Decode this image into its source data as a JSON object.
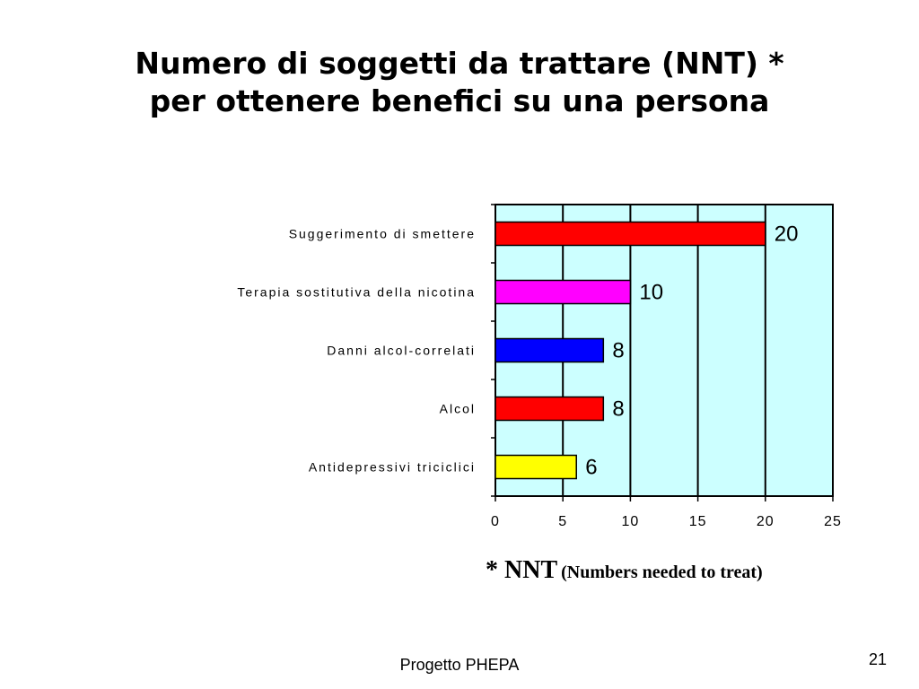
{
  "slide": {
    "title_line1": "Numero di soggetti da trattare (NNT) *",
    "title_line2": "per ottenere benefici su una persona",
    "footnote_main": "* NNT",
    "footnote_sub": "(Numbers needed to treat)",
    "footer": "Progetto PHEPA",
    "page_number": "21"
  },
  "chart_data": {
    "type": "bar",
    "orientation": "horizontal",
    "categories": [
      "Suggerimento di smettere",
      "Terapia sostitutiva della nicotina",
      "Danni alcol-correlati",
      "Alcol",
      "Antidepressivi triciclici"
    ],
    "values": [
      20,
      10,
      8,
      8,
      6
    ],
    "data_labels": [
      "20",
      "10",
      "8",
      "8",
      "6"
    ],
    "bar_colors": [
      "#ff0000",
      "#ff00ff",
      "#0000ff",
      "#ff0000",
      "#ffff00"
    ],
    "plot_background": "#ccffff",
    "xlim": [
      0,
      25
    ],
    "xticks": [
      0,
      5,
      10,
      15,
      20,
      25
    ],
    "xtick_labels": [
      "0",
      "5",
      "10",
      "15",
      "20",
      "25"
    ],
    "grid": true,
    "legend": "none"
  }
}
